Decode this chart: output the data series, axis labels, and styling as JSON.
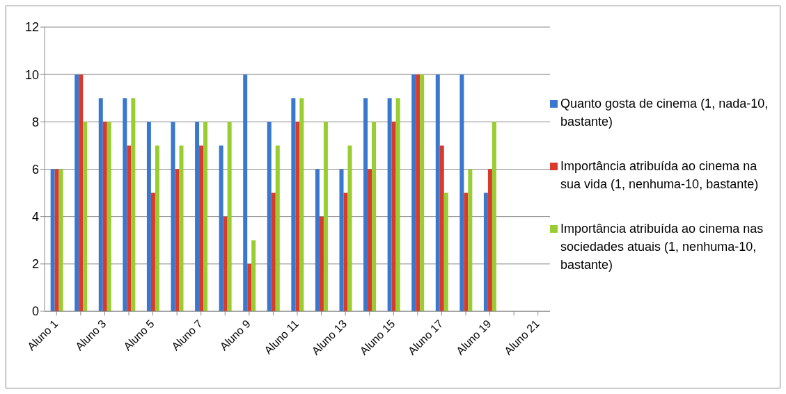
{
  "chart_data": {
    "type": "bar",
    "categories": [
      "Aluno 1",
      null,
      "Aluno 3",
      null,
      "Aluno 5",
      null,
      "Aluno 7",
      null,
      "Aluno 9",
      null,
      "Aluno 11",
      null,
      "Aluno 13",
      null,
      "Aluno 15",
      null,
      "Aluno 17",
      null,
      "Aluno 19",
      null,
      "Aluno 21"
    ],
    "series": [
      {
        "name": "Quanto gosta de cinema (1, nada-10, bastante)",
        "color": "#3a78d0",
        "values": [
          6,
          10,
          9,
          9,
          8,
          8,
          8,
          7,
          10,
          8,
          9,
          6,
          6,
          9,
          9,
          10,
          10,
          10,
          5,
          null,
          null
        ]
      },
      {
        "name": "Importância atribuída ao cinema na sua vida (1, nenhuma-10, bastante)",
        "color": "#d93a2b",
        "values": [
          6,
          10,
          8,
          7,
          5,
          6,
          7,
          4,
          2,
          5,
          8,
          4,
          5,
          6,
          8,
          10,
          7,
          5,
          6,
          null,
          null
        ]
      },
      {
        "name": "Importância atribuída ao cinema nas sociedades atuais (1, nenhuma-10, bastante)",
        "color": "#9acd32",
        "values": [
          6,
          8,
          8,
          9,
          7,
          7,
          8,
          8,
          3,
          7,
          9,
          8,
          7,
          8,
          9,
          10,
          5,
          6,
          8,
          null,
          null
        ]
      }
    ],
    "ylim": [
      0,
      12
    ],
    "yticks": [
      0,
      2,
      4,
      6,
      8,
      10,
      12
    ],
    "grid": "y",
    "legend": "right"
  }
}
